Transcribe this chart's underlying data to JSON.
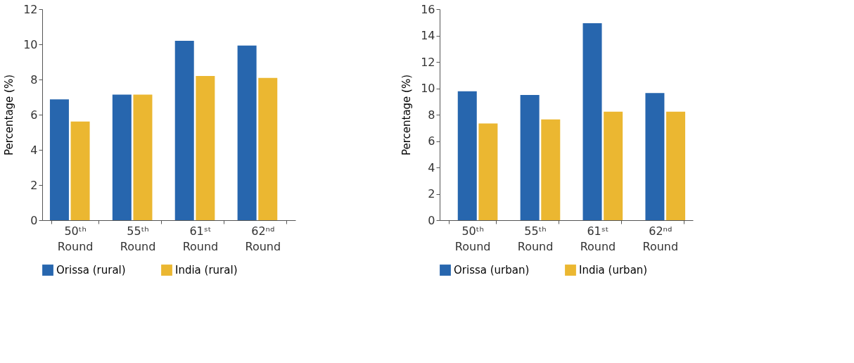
{
  "chart_data": [
    {
      "type": "bar",
      "ylabel": "Percentage (%)",
      "categories": [
        "50ᵗʰ Round",
        "55ᵗʰ Round",
        "61ˢᵗ Round",
        "62ⁿᵈ Round"
      ],
      "series": [
        {
          "name": "Orissa (rural)",
          "color": "#2766ae",
          "values": [
            6.87,
            7.14,
            10.2,
            9.93
          ]
        },
        {
          "name": "India (rural)",
          "color": "#ebb731",
          "values": [
            5.61,
            7.14,
            8.2,
            8.09
          ]
        }
      ],
      "ylim": [
        0,
        12
      ],
      "yticks": [
        0,
        2,
        4,
        6,
        8,
        10,
        12
      ],
      "grid": false,
      "legend": "bottom"
    },
    {
      "type": "bar",
      "ylabel": "Percentage (%)",
      "categories": [
        "50ᵗʰ Round",
        "55ᵗʰ Round",
        "61ˢᵗ Round",
        "62ⁿᵈ Round"
      ],
      "series": [
        {
          "name": "Orissa (urban)",
          "color": "#2766ae",
          "values": [
            9.77,
            9.5,
            14.94,
            9.64
          ]
        },
        {
          "name": "India (urban)",
          "color": "#ebb731",
          "values": [
            7.33,
            7.64,
            8.23,
            8.23
          ]
        }
      ],
      "ylim": [
        0,
        16
      ],
      "yticks": [
        0,
        2,
        4,
        6,
        8,
        10,
        12,
        14,
        16
      ],
      "grid": false,
      "legend": "bottom"
    }
  ]
}
